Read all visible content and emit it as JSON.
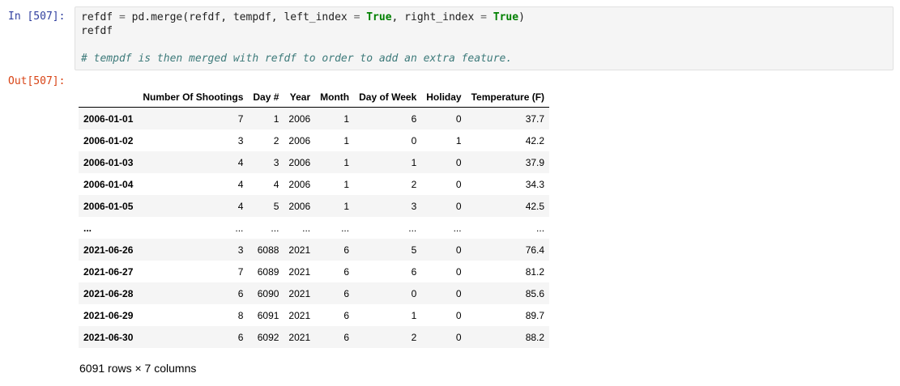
{
  "input_prompt": "In [507]:",
  "output_prompt": "Out[507]:",
  "code": {
    "line1": {
      "p1": "refdf ",
      "eq1": "=",
      "p2": " pd.merge(refdf, tempdf, left_index ",
      "eq2": "=",
      "p3": " ",
      "kw1": "True",
      "p4": ", right_index ",
      "eq3": "=",
      "p5": " ",
      "kw2": "True",
      "p6": ")"
    },
    "line2": "refdf",
    "comment": "# tempdf is then merged with refdf to order to add an extra feature."
  },
  "table": {
    "columns": [
      "Number Of Shootings",
      "Day #",
      "Year",
      "Month",
      "Day of Week",
      "Holiday",
      "Temperature (F)"
    ],
    "rows": [
      {
        "index": "2006-01-01",
        "cells": [
          "7",
          "1",
          "2006",
          "1",
          "6",
          "0",
          "37.7"
        ]
      },
      {
        "index": "2006-01-02",
        "cells": [
          "3",
          "2",
          "2006",
          "1",
          "0",
          "1",
          "42.2"
        ]
      },
      {
        "index": "2006-01-03",
        "cells": [
          "4",
          "3",
          "2006",
          "1",
          "1",
          "0",
          "37.9"
        ]
      },
      {
        "index": "2006-01-04",
        "cells": [
          "4",
          "4",
          "2006",
          "1",
          "2",
          "0",
          "34.3"
        ]
      },
      {
        "index": "2006-01-05",
        "cells": [
          "4",
          "5",
          "2006",
          "1",
          "3",
          "0",
          "42.5"
        ]
      },
      {
        "index": "...",
        "cells": [
          "...",
          "...",
          "...",
          "...",
          "...",
          "...",
          "..."
        ]
      },
      {
        "index": "2021-06-26",
        "cells": [
          "3",
          "6088",
          "2021",
          "6",
          "5",
          "0",
          "76.4"
        ]
      },
      {
        "index": "2021-06-27",
        "cells": [
          "7",
          "6089",
          "2021",
          "6",
          "6",
          "0",
          "81.2"
        ]
      },
      {
        "index": "2021-06-28",
        "cells": [
          "6",
          "6090",
          "2021",
          "6",
          "0",
          "0",
          "85.6"
        ]
      },
      {
        "index": "2021-06-29",
        "cells": [
          "8",
          "6091",
          "2021",
          "6",
          "1",
          "0",
          "89.7"
        ]
      },
      {
        "index": "2021-06-30",
        "cells": [
          "6",
          "6092",
          "2021",
          "6",
          "2",
          "0",
          "88.2"
        ]
      }
    ]
  },
  "shape_text": "6091 rows × 7 columns"
}
